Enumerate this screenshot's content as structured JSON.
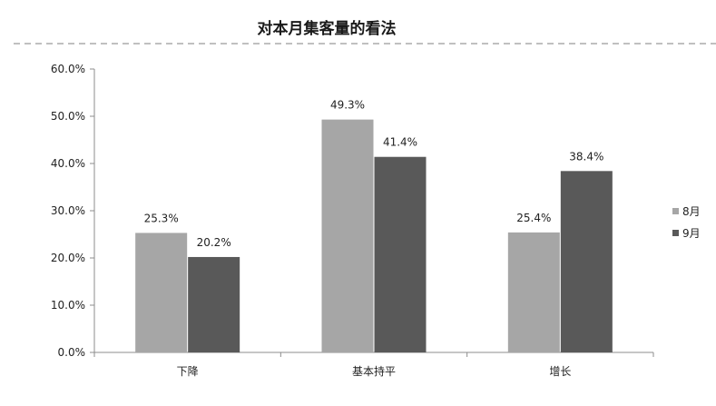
{
  "chart_data": {
    "type": "bar",
    "title": "对本月集客量的看法",
    "categories": [
      "下降",
      "基本持平",
      "增长"
    ],
    "series": [
      {
        "name": "8月",
        "values": [
          25.3,
          49.3,
          25.4
        ],
        "color": "#a6a6a6"
      },
      {
        "name": "9月",
        "values": [
          20.2,
          41.4,
          38.4
        ],
        "color": "#595959"
      }
    ],
    "data_labels": [
      [
        "25.3%",
        "49.3%",
        "25.4%"
      ],
      [
        "20.2%",
        "41.4%",
        "38.4%"
      ]
    ],
    "y_ticks": [
      "0.0%",
      "10.0%",
      "20.0%",
      "30.0%",
      "40.0%",
      "50.0%",
      "60.0%"
    ],
    "ylim": [
      0,
      60
    ],
    "xlabel": "",
    "ylabel": "",
    "grid": false,
    "legend_position": "right"
  }
}
